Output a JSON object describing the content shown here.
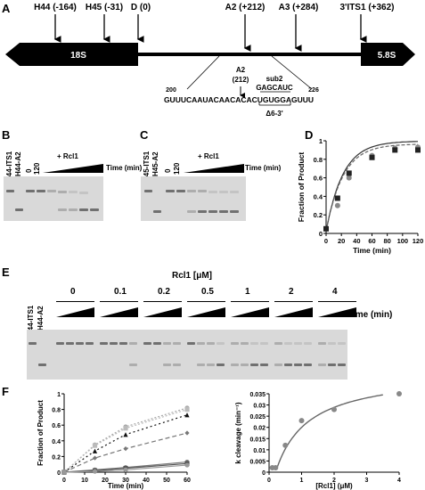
{
  "panels": {
    "A": "A",
    "B": "B",
    "C": "C",
    "D": "D",
    "E": "E",
    "F": "F"
  },
  "panel_a": {
    "left_gene": "18S",
    "right_gene": "5.8S",
    "sites": [
      {
        "label": "H44 (-164)"
      },
      {
        "label": "H45 (-31)"
      },
      {
        "label": "D (0)"
      },
      {
        "label": "A2 (+212)"
      },
      {
        "label": "A3 (+284)"
      },
      {
        "label": "3'ITS1 (+362)"
      }
    ],
    "zoom": {
      "a2_label": "A2",
      "a2_pos": "(212)",
      "sub2_label": "sub2",
      "sub2_seq": "GAGCAUC",
      "start_num": "200",
      "end_num": "226",
      "sequence": "GUUUCAAUACAACACACUGUGGAGUUU",
      "deletion": "Δ6-3'"
    }
  },
  "panel_b": {
    "lane1": "H44-ITS1",
    "lane2": "H44-A2",
    "t0": "0",
    "t120": "120",
    "rcl1": "+ Rcl1",
    "time": "Time (min)"
  },
  "panel_c": {
    "lane1": "H45-ITS1",
    "lane2": "H45-A2",
    "t0": "0",
    "t120": "120",
    "rcl1": "+ Rcl1",
    "time": "Time (min)"
  },
  "panel_e": {
    "lane1": "H44-ITS1",
    "lane2": "H44-A2",
    "title": "Rcl1 [μM]",
    "concentrations": [
      "0",
      "0.1",
      "0.2",
      "0.5",
      "1",
      "2",
      "4"
    ],
    "time": "Time (min)"
  },
  "chart_data": [
    {
      "id": "D",
      "type": "scatter",
      "xlabel": "Time (min)",
      "ylabel": "Fraction of Product",
      "xlim": [
        0,
        120
      ],
      "ylim": [
        0,
        1
      ],
      "xticks": [
        "0",
        "20",
        "40",
        "60",
        "80",
        "100",
        "120"
      ],
      "yticks": [
        "0",
        "0.2",
        "0.4",
        "0.6",
        "0.8",
        "1"
      ],
      "series": [
        {
          "marker": "circle",
          "color": "#888888",
          "x": [
            0,
            15,
            30,
            60,
            90,
            120
          ],
          "y": [
            0.05,
            0.3,
            0.6,
            0.84,
            0.92,
            0.93
          ]
        },
        {
          "marker": "square",
          "color": "#222222",
          "x": [
            0,
            15,
            30,
            60,
            90,
            120
          ],
          "y": [
            0.05,
            0.38,
            0.65,
            0.82,
            0.9,
            0.9
          ]
        }
      ]
    },
    {
      "id": "F1",
      "type": "line",
      "xlabel": "Time (min)",
      "ylabel": "Fraction of Product",
      "xlim": [
        0,
        60
      ],
      "ylim": [
        0,
        1
      ],
      "xticks": [
        "0",
        "10",
        "20",
        "30",
        "40",
        "50",
        "60"
      ],
      "yticks": [
        "0",
        "0.2",
        "0.4",
        "0.6",
        "0.8",
        "1"
      ],
      "series": [
        {
          "marker": "circle",
          "color": "#aaaaaa",
          "dash": "2,2",
          "x": [
            0,
            15,
            30,
            60
          ],
          "y": [
            0,
            0.35,
            0.58,
            0.82
          ]
        },
        {
          "marker": "square",
          "color": "#bbbbbb",
          "dash": "2,2",
          "x": [
            0,
            15,
            30,
            60
          ],
          "y": [
            0,
            0.34,
            0.56,
            0.8
          ]
        },
        {
          "marker": "triangle",
          "color": "#111111",
          "dash": "2,3",
          "x": [
            0,
            15,
            30,
            60
          ],
          "y": [
            0,
            0.27,
            0.48,
            0.73
          ]
        },
        {
          "marker": "diamond",
          "color": "#777777",
          "dash": "5,3",
          "x": [
            0,
            15,
            30,
            60
          ],
          "y": [
            0,
            0.18,
            0.3,
            0.5
          ]
        },
        {
          "marker": "circle",
          "color": "#777777",
          "dash": "",
          "x": [
            0,
            15,
            30,
            60
          ],
          "y": [
            0,
            0.03,
            0.06,
            0.13
          ]
        },
        {
          "marker": "square",
          "color": "#555555",
          "dash": "",
          "x": [
            0,
            15,
            30,
            60
          ],
          "y": [
            0,
            0.02,
            0.05,
            0.11
          ]
        },
        {
          "marker": "circle",
          "color": "#999999",
          "dash": "",
          "x": [
            0,
            15,
            30,
            60
          ],
          "y": [
            0,
            0.01,
            0.03,
            0.09
          ]
        }
      ]
    },
    {
      "id": "F2",
      "type": "scatter",
      "xlabel": "[Rcl1] (μM)",
      "ylabel": "k cleavage (min⁻¹)",
      "xlim": [
        0,
        4
      ],
      "ylim": [
        0,
        0.035
      ],
      "xticks": [
        "0",
        "1",
        "2",
        "3",
        "4"
      ],
      "yticks": [
        "0",
        "0.005",
        "0.01",
        "0.015",
        "0.02",
        "0.025",
        "0.03",
        "0.035"
      ],
      "series": [
        {
          "marker": "circle",
          "color": "#888888",
          "x": [
            0.1,
            0.2,
            0.5,
            1,
            2,
            4
          ],
          "y": [
            0.002,
            0.002,
            0.012,
            0.023,
            0.028,
            0.035
          ]
        }
      ]
    }
  ]
}
